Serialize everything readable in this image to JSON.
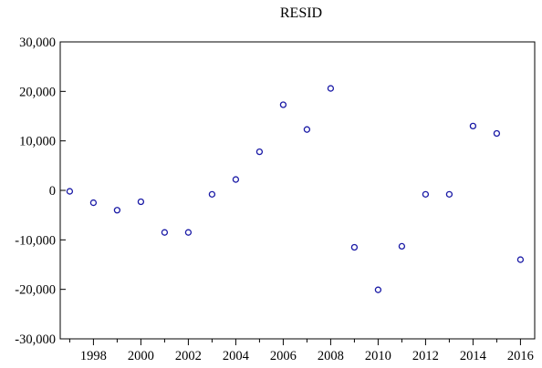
{
  "chart_data": {
    "type": "scatter",
    "title": "RESID",
    "xlabel": "",
    "ylabel": "",
    "xlim": [
      1996.6,
      2016.6
    ],
    "ylim": [
      -30000,
      30000
    ],
    "x_ticks": [
      1998,
      2000,
      2002,
      2004,
      2006,
      2008,
      2010,
      2012,
      2014,
      2016
    ],
    "y_ticks": [
      -30000,
      -20000,
      -10000,
      0,
      10000,
      20000,
      30000
    ],
    "y_tick_labels": [
      "-30,000",
      "-20,000",
      "-10,000",
      "0",
      "10,000",
      "20,000",
      "30,000"
    ],
    "grid": false,
    "legend": "none",
    "marker": "hollow-circle",
    "marker_color": "#1a1aa6",
    "series": [
      {
        "x": [
          1997,
          1998,
          1999,
          2000,
          2001,
          2002,
          2003,
          2004,
          2005,
          2006,
          2007,
          2008,
          2009,
          2010,
          2011,
          2012,
          2013,
          2014,
          2015,
          2016
        ],
        "values": [
          -200,
          -2500,
          -4000,
          -2300,
          -8500,
          -8500,
          -800,
          2200,
          7800,
          17300,
          12300,
          20600,
          -11500,
          -20100,
          -11300,
          -800,
          -800,
          13000,
          11500,
          -14000
        ]
      }
    ]
  }
}
